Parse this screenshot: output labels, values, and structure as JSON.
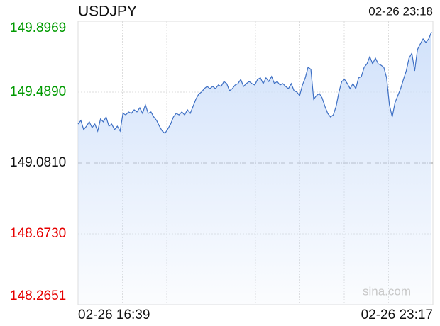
{
  "chart_data": {
    "type": "line",
    "title": "USDJPY",
    "timestamp": "02-26 23:18",
    "watermark": "sina.com",
    "color": "#3d6fc4",
    "fill_color": "#cfe0fa",
    "up_color": "#009a00",
    "down_color": "#e60000",
    "grid": true,
    "ylim": [
      148.2651,
      149.8969
    ],
    "yticks": [
      148.2651,
      {
        "value": 148.673,
        "label": "148.6730"
      },
      {
        "value": 149.081,
        "label": "149.0810"
      },
      {
        "value": 149.489,
        "label": "149.4890"
      },
      149.8969
    ],
    "categories": [
      "02-26 16:39",
      null,
      null,
      null,
      null,
      null,
      null,
      null,
      null,
      null,
      null,
      null,
      null,
      null,
      null,
      null,
      null,
      null,
      null,
      null,
      null,
      null,
      null,
      null,
      null,
      null,
      null,
      null,
      null,
      null,
      null,
      null,
      null,
      null,
      null,
      null,
      null,
      null,
      null,
      null,
      null,
      null,
      null,
      null,
      null,
      null,
      null,
      null,
      null,
      null,
      null,
      null,
      null,
      null,
      null,
      null,
      null,
      null,
      null,
      null,
      null,
      null,
      null,
      null,
      null,
      null,
      null,
      null,
      null,
      null,
      null,
      null,
      null,
      null,
      null,
      null,
      null,
      null,
      null,
      null,
      null,
      null,
      null,
      null,
      null,
      null,
      null,
      null,
      null,
      null,
      null,
      null,
      null,
      null,
      null,
      null,
      null,
      null,
      null,
      null,
      null,
      null,
      null,
      null,
      null,
      null,
      null,
      null,
      null,
      null,
      null,
      null,
      null,
      null,
      null,
      null,
      null,
      null,
      null,
      null,
      null,
      null,
      null,
      null,
      null,
      null,
      "02-26 23:17"
    ],
    "values": [
      149.305,
      149.326,
      149.273,
      149.293,
      149.318,
      149.285,
      149.305,
      149.265,
      149.334,
      149.318,
      149.346,
      149.293,
      149.305,
      149.273,
      149.293,
      149.265,
      149.367,
      149.358,
      149.375,
      149.367,
      149.387,
      149.375,
      149.399,
      149.367,
      149.416,
      149.367,
      149.375,
      149.346,
      149.326,
      149.293,
      149.265,
      149.252,
      149.277,
      149.305,
      149.346,
      149.367,
      149.358,
      149.375,
      149.358,
      149.387,
      149.367,
      149.407,
      149.448,
      149.477,
      149.489,
      149.509,
      149.522,
      149.509,
      149.522,
      149.509,
      149.53,
      149.522,
      149.55,
      149.538,
      149.497,
      149.509,
      149.53,
      149.538,
      149.562,
      149.522,
      149.538,
      149.55,
      149.538,
      149.53,
      149.562,
      149.571,
      149.538,
      149.571,
      149.55,
      149.579,
      149.538,
      149.55,
      149.53,
      149.538,
      149.522,
      149.509,
      149.538,
      149.497,
      149.489,
      149.469,
      149.53,
      149.571,
      149.632,
      149.62,
      149.448,
      149.469,
      149.481,
      149.456,
      149.407,
      149.367,
      149.346,
      149.358,
      149.407,
      149.489,
      149.55,
      149.562,
      149.538,
      149.509,
      149.538,
      149.509,
      149.571,
      149.579,
      149.632,
      149.652,
      149.693,
      149.652,
      149.685,
      149.652,
      149.644,
      149.632,
      149.571,
      149.416,
      149.346,
      149.428,
      149.469,
      149.509,
      149.562,
      149.611,
      149.685,
      149.713,
      149.611,
      149.734,
      149.766,
      149.795,
      149.775,
      149.795,
      149.836
    ]
  }
}
